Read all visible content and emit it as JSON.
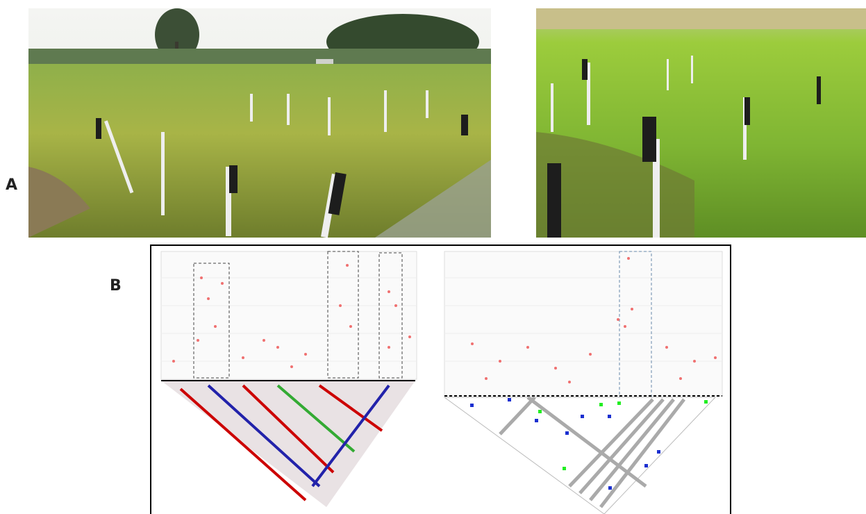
{
  "figure": {
    "panels": [
      {
        "label": "A"
      },
      {
        "label": "B"
      }
    ]
  }
}
